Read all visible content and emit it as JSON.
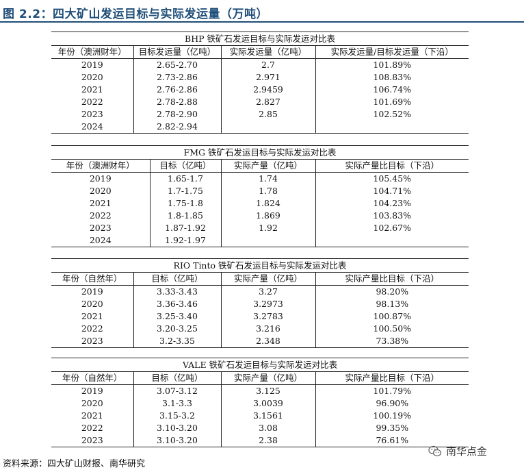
{
  "figure": {
    "title": "图 2.2：四大矿山发运目标与实际发运量（万吨）",
    "source": "资料来源：四大矿山财报、南华研究",
    "watermark": "南华点金"
  },
  "tables": [
    {
      "caption": "BHP 铁矿石发运目标与实际发运对比表",
      "headers": [
        "年份（澳洲财年）",
        "目标发运量（亿吨）",
        "实际发运量（亿吨）",
        "实际发运量/目标发运量（下沿）"
      ],
      "rows": [
        [
          "2019",
          "2.65-2.70",
          "2.7",
          "101.89%"
        ],
        [
          "2020",
          "2.73-2.86",
          "2.971",
          "108.83%"
        ],
        [
          "2021",
          "2.76-2.86",
          "2.9459",
          "106.74%"
        ],
        [
          "2022",
          "2.78-2.88",
          "2.827",
          "101.69%"
        ],
        [
          "2023",
          "2.78-2.90",
          "2.85",
          "102.52%"
        ],
        [
          "2024",
          "2.82-2.94",
          "",
          ""
        ]
      ]
    },
    {
      "caption": "FMG 铁矿石发运目标与实际发运对比表",
      "headers": [
        "年份（澳洲财年）",
        "目标（亿吨）",
        "实际产量（亿吨）",
        "实际产量比目标（下沿）"
      ],
      "rows": [
        [
          "2019",
          "1.65-1.7",
          "1.74",
          "105.45%"
        ],
        [
          "2020",
          "1.7-1.75",
          "1.78",
          "104.71%"
        ],
        [
          "2021",
          "1.75-1.8",
          "1.824",
          "104.23%"
        ],
        [
          "2022",
          "1.8-1.85",
          "1.869",
          "103.83%"
        ],
        [
          "2023",
          "1.87-1.92",
          "1.92",
          "102.67%"
        ],
        [
          "2024",
          "1.92-1.97",
          "",
          ""
        ]
      ]
    },
    {
      "caption": "RIO Tinto 铁矿石发运目标与实际发运对比表",
      "headers": [
        "年份（自然年）",
        "目标（亿吨）",
        "实际产量（亿吨）",
        "实际产量比目标（下沿）"
      ],
      "rows": [
        [
          "2019",
          "3.33-3.43",
          "3.27",
          "98.20%"
        ],
        [
          "2020",
          "3.36-3.46",
          "3.2973",
          "98.13%"
        ],
        [
          "2021",
          "3.25-3.40",
          "3.2783",
          "100.87%"
        ],
        [
          "2022",
          "3.20-3.25",
          "3.216",
          "100.50%"
        ],
        [
          "2023",
          "3.2-3.35",
          "2.348",
          "73.38%"
        ]
      ]
    },
    {
      "caption": "VALE 铁矿石发运目标与实际发运对比表",
      "headers": [
        "年份（自然年）",
        "目标（亿吨）",
        "实际产量（亿吨）",
        "实际产量比目标（下沿）"
      ],
      "rows": [
        [
          "2019",
          "3.07-3.12",
          "3.125",
          "101.79%"
        ],
        [
          "2020",
          "3.1-3.3",
          "3.0039",
          "96.90%"
        ],
        [
          "2021",
          "3.15-3.2",
          "3.1561",
          "100.19%"
        ],
        [
          "2022",
          "3.10-3.20",
          "3.08",
          "99.35%"
        ],
        [
          "2023",
          "3.10-3.20",
          "2.38",
          "76.61%"
        ]
      ]
    }
  ]
}
